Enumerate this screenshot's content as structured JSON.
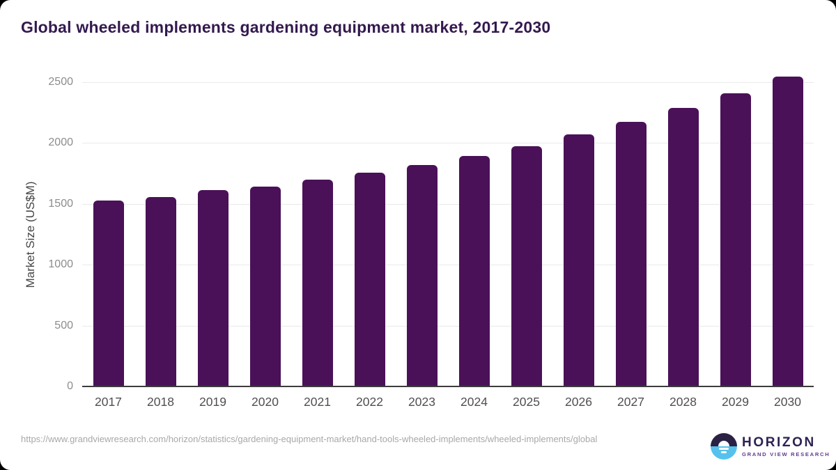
{
  "title": "Global wheeled implements gardening equipment market, 2017-2030",
  "chart_data": {
    "type": "bar",
    "categories": [
      "2017",
      "2018",
      "2019",
      "2020",
      "2021",
      "2022",
      "2023",
      "2024",
      "2025",
      "2026",
      "2027",
      "2028",
      "2029",
      "2030"
    ],
    "values": [
      1520,
      1550,
      1605,
      1635,
      1695,
      1750,
      1815,
      1890,
      1970,
      2065,
      2170,
      2285,
      2405,
      2540
    ],
    "title": "Global wheeled implements gardening equipment market, 2017-2030",
    "xlabel": "",
    "ylabel": "Market Size (US$M)",
    "ylim": [
      0,
      2500
    ],
    "yticks": [
      0,
      500,
      1000,
      1500,
      2000,
      2500
    ],
    "grid": true,
    "legend": false,
    "bar_color": "#4a1158"
  },
  "colors": {
    "title": "#33194f",
    "bar": "#4a1158",
    "gridline": "#e9e9e9",
    "baseline": "#3c3c3c",
    "logo_navy": "#2b2144",
    "logo_blue": "#56c1ec"
  },
  "footer": {
    "source_url": "https://www.grandviewresearch.com/horizon/statistics/gardening-equipment-market/hand-tools-wheeled-implements/wheeled-implements/global",
    "logo": {
      "name": "HORIZON",
      "subtitle": "GRAND VIEW RESEARCH"
    }
  }
}
